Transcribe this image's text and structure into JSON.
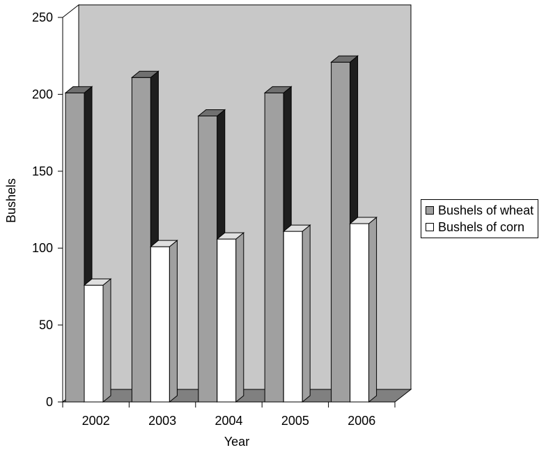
{
  "chart_data": {
    "type": "bar",
    "categories": [
      "2002",
      "2003",
      "2004",
      "2005",
      "2006"
    ],
    "series": [
      {
        "name": "Bushels of wheat",
        "values": [
          205,
          215,
          190,
          205,
          225
        ]
      },
      {
        "name": "Bushels of corn",
        "values": [
          80,
          105,
          110,
          115,
          120
        ]
      }
    ],
    "title": "",
    "xlabel": "Year",
    "ylabel": "Bushels",
    "ylim": [
      0,
      250
    ],
    "yticks": [
      "0",
      "50",
      "100",
      "150",
      "200",
      "250"
    ],
    "grid": false,
    "legend_position": "right",
    "three_d": true,
    "colors": {
      "wall": "#c8c8c8",
      "floor": "#808080",
      "wheat_front": "#a0a0a0",
      "wheat_side": "#1e1e1e",
      "wheat_top": "#707070",
      "corn_front": "#ffffff",
      "corn_side": "#a0a0a0",
      "corn_top": "#e0e0e0"
    }
  }
}
